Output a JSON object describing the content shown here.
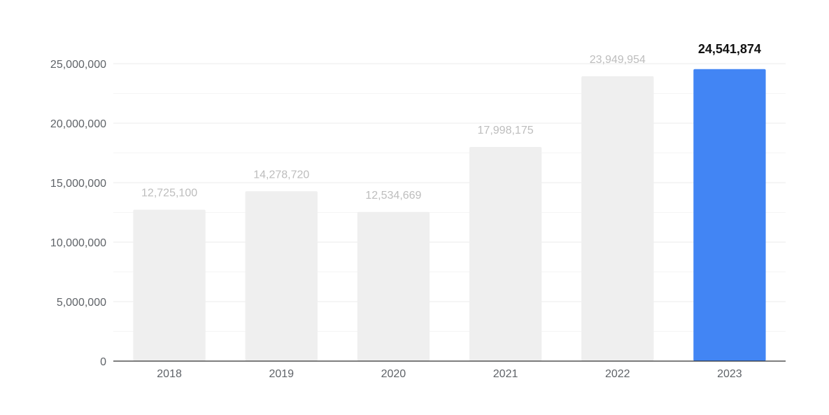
{
  "chart_data": {
    "type": "bar",
    "title": "",
    "xlabel": "",
    "ylabel": "",
    "categories": [
      "2018",
      "2019",
      "2020",
      "2021",
      "2022",
      "2023"
    ],
    "values": [
      12725100,
      14278720,
      12534669,
      17998175,
      23949954,
      24541874
    ],
    "value_labels": [
      "12,725,100",
      "14,278,720",
      "12,534,669",
      "17,998,175",
      "23,949,954",
      "24,541,874"
    ],
    "ylim": [
      0,
      25000000
    ],
    "yticks": [
      0,
      5000000,
      10000000,
      15000000,
      20000000,
      25000000
    ],
    "ytick_labels": [
      "0",
      "5,000,000",
      "10,000,000",
      "15,000,000",
      "20,000,000",
      "25,000,000"
    ],
    "grid": true,
    "legend": "none",
    "highlight_index": 5,
    "colors": {
      "bar": "#efefef",
      "highlight_bar": "#4285f4",
      "grid": "#ebebeb",
      "axis": "#333333",
      "tick_text": "#5f6368",
      "label_text": "#bdbdbd",
      "highlight_label_text": "#111111"
    }
  }
}
